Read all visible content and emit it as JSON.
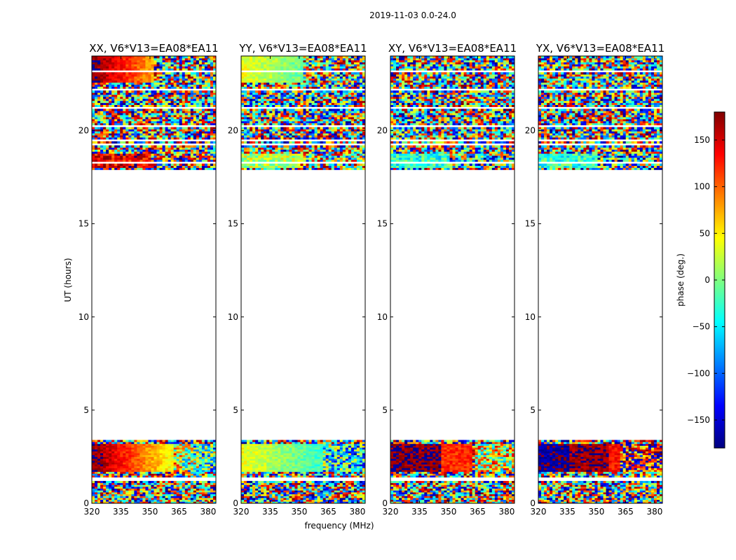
{
  "chart_data": {
    "type": "heatmap",
    "suptitle": "2019-11-03 0.0-24.0",
    "xlabel": "frequency (MHz)",
    "ylabel": "UT (hours)",
    "xlim": [
      320,
      384
    ],
    "ylim": [
      0,
      24
    ],
    "x_ticks": [
      "320",
      "335",
      "350",
      "365",
      "380"
    ],
    "y_ticks": [
      "0",
      "5",
      "10",
      "15",
      "20"
    ],
    "colorbar": {
      "label": "phase (deg.)",
      "range": [
        -180,
        180
      ],
      "ticks": [
        "150",
        "100",
        "50",
        "0",
        "−50",
        "−100",
        "−150"
      ],
      "colormap": "jet",
      "colors": [
        "#00007f",
        "#0000ff",
        "#007fff",
        "#00ffff",
        "#7fff7f",
        "#ffff00",
        "#ff7f00",
        "#ff0000",
        "#7f0000"
      ]
    },
    "data_time_ranges_hours": [
      [
        0.0,
        3.4
      ],
      [
        17.9,
        24.0
      ]
    ],
    "panels": [
      {
        "title": "XX, V6*V13=EA08*EA11",
        "polarization": "XX"
      },
      {
        "title": "YY, V6*V13=EA08*EA11",
        "polarization": "YY"
      },
      {
        "title": "XY, V6*V13=EA08*EA11",
        "polarization": "XY"
      },
      {
        "title": "YX, V6*V13=EA08*EA11",
        "polarization": "YX"
      }
    ]
  }
}
